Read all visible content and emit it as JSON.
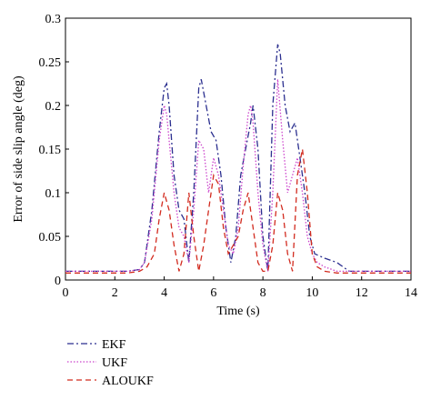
{
  "chart_data": {
    "type": "line",
    "title": "",
    "xlabel": "Time (s)",
    "ylabel": "Error of side slip angle (deg)",
    "xlim": [
      0,
      14
    ],
    "ylim": [
      0,
      0.3
    ],
    "xticks": [
      0,
      2,
      4,
      6,
      8,
      10,
      12,
      14
    ],
    "yticks": [
      0,
      0.05,
      0.1,
      0.15,
      0.2,
      0.25,
      0.3
    ],
    "ytick_labels": [
      "0",
      "0.05",
      "0.1",
      "0.15",
      "0.2",
      "0.25",
      "0.3"
    ],
    "grid": false,
    "legend_position": "bottom-left, outside plot",
    "series": [
      {
        "name": "EKF",
        "color": "#2b2f8f",
        "style": "dash-dot",
        "x": [
          0,
          0.5,
          1,
          1.5,
          2,
          2.5,
          3,
          3.2,
          3.5,
          3.8,
          4.0,
          4.1,
          4.2,
          4.4,
          4.6,
          4.8,
          5.0,
          5.2,
          5.4,
          5.5,
          5.7,
          5.9,
          6.1,
          6.3,
          6.5,
          6.7,
          6.9,
          7.1,
          7.3,
          7.5,
          7.6,
          7.8,
          8.0,
          8.2,
          8.4,
          8.6,
          8.7,
          8.9,
          9.1,
          9.3,
          9.5,
          9.7,
          9.9,
          10.1,
          10.5,
          11,
          11.5,
          12,
          12.5,
          13,
          13.5,
          14
        ],
        "y": [
          0.01,
          0.01,
          0.01,
          0.01,
          0.01,
          0.01,
          0.012,
          0.02,
          0.08,
          0.17,
          0.22,
          0.225,
          0.2,
          0.12,
          0.08,
          0.07,
          0.02,
          0.1,
          0.22,
          0.23,
          0.2,
          0.17,
          0.16,
          0.12,
          0.06,
          0.02,
          0.05,
          0.12,
          0.15,
          0.18,
          0.2,
          0.15,
          0.05,
          0.01,
          0.2,
          0.27,
          0.26,
          0.2,
          0.17,
          0.18,
          0.14,
          0.1,
          0.05,
          0.03,
          0.025,
          0.02,
          0.01,
          0.01,
          0.01,
          0.01,
          0.01,
          0.01
        ]
      },
      {
        "name": "UKF",
        "color": "#cc44cc",
        "style": "dotted",
        "x": [
          0,
          0.5,
          1,
          1.5,
          2,
          2.5,
          3,
          3.2,
          3.5,
          3.8,
          4.0,
          4.1,
          4.2,
          4.4,
          4.6,
          4.8,
          5.0,
          5.2,
          5.4,
          5.6,
          5.8,
          6.0,
          6.2,
          6.4,
          6.6,
          6.8,
          7.0,
          7.2,
          7.4,
          7.5,
          7.6,
          7.8,
          8.0,
          8.2,
          8.4,
          8.6,
          8.8,
          9.0,
          9.2,
          9.4,
          9.6,
          9.8,
          10.0,
          10.2,
          10.5,
          11,
          11.5,
          12,
          12.5,
          13,
          13.5,
          14
        ],
        "y": [
          0.01,
          0.01,
          0.01,
          0.01,
          0.01,
          0.01,
          0.012,
          0.02,
          0.07,
          0.16,
          0.2,
          0.19,
          0.16,
          0.1,
          0.06,
          0.05,
          0.02,
          0.08,
          0.16,
          0.15,
          0.1,
          0.14,
          0.12,
          0.08,
          0.04,
          0.03,
          0.06,
          0.13,
          0.19,
          0.2,
          0.18,
          0.1,
          0.04,
          0.01,
          0.1,
          0.23,
          0.16,
          0.1,
          0.12,
          0.14,
          0.1,
          0.05,
          0.03,
          0.02,
          0.015,
          0.01,
          0.01,
          0.01,
          0.01,
          0.01,
          0.01,
          0.01
        ]
      },
      {
        "name": "ALOUKF",
        "color": "#d22b1f",
        "style": "dashed",
        "x": [
          0,
          0.5,
          1,
          1.5,
          2,
          2.5,
          3,
          3.3,
          3.6,
          3.8,
          4.0,
          4.2,
          4.4,
          4.6,
          4.8,
          5.0,
          5.2,
          5.4,
          5.6,
          5.8,
          6.0,
          6.2,
          6.4,
          6.6,
          6.8,
          7.0,
          7.2,
          7.4,
          7.6,
          7.8,
          8.0,
          8.2,
          8.4,
          8.6,
          8.8,
          9.0,
          9.2,
          9.4,
          9.6,
          9.8,
          10.0,
          10.2,
          10.5,
          11,
          11.5,
          12,
          12.5,
          13,
          13.5,
          14
        ],
        "y": [
          0.008,
          0.008,
          0.008,
          0.008,
          0.008,
          0.008,
          0.01,
          0.015,
          0.03,
          0.07,
          0.1,
          0.08,
          0.04,
          0.01,
          0.03,
          0.1,
          0.05,
          0.01,
          0.04,
          0.08,
          0.12,
          0.11,
          0.06,
          0.03,
          0.04,
          0.05,
          0.08,
          0.1,
          0.06,
          0.02,
          0.01,
          0.01,
          0.04,
          0.1,
          0.08,
          0.03,
          0.01,
          0.12,
          0.15,
          0.1,
          0.03,
          0.015,
          0.01,
          0.008,
          0.008,
          0.008,
          0.008,
          0.008,
          0.008,
          0.008
        ]
      }
    ]
  }
}
